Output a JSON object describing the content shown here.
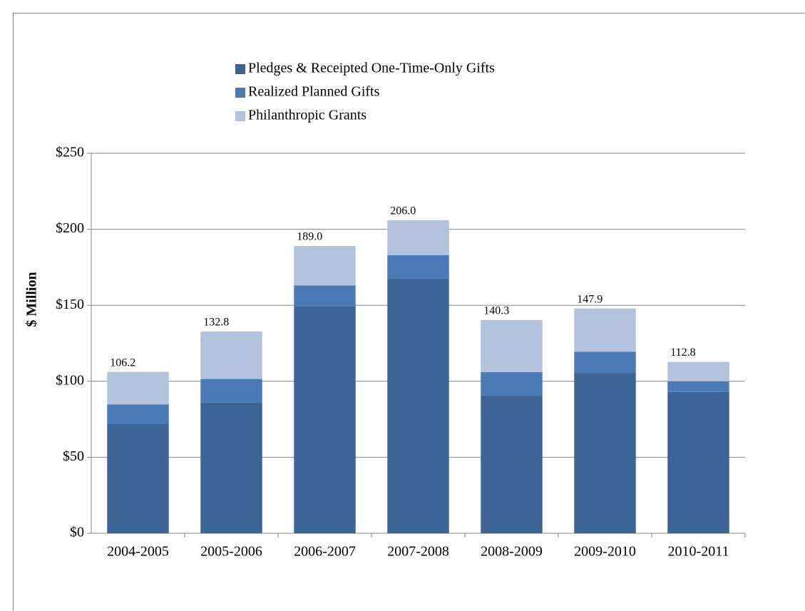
{
  "chart_data": {
    "type": "stacked_bar",
    "y_label": "$ Million",
    "categories": [
      "2004-2005",
      "2005-2006",
      "2006-2007",
      "2007-2008",
      "2008-2009",
      "2009-2010",
      "2010-2011"
    ],
    "series": [
      {
        "name": "Pledges & Receipted One-Time-Only Gifts",
        "color": "#3d6496",
        "values": [
          72,
          86,
          149.5,
          167.5,
          90.5,
          105.5,
          93
        ]
      },
      {
        "name": "Realized Planned Gifts",
        "color": "#4a7ab5",
        "values": [
          12.8,
          15.5,
          13.5,
          15.5,
          15.5,
          14,
          7
        ]
      },
      {
        "name": "Philanthropic Grants",
        "color": "#b4c3dd",
        "values": [
          21.4,
          31.3,
          26,
          23,
          34.3,
          28.4,
          12.8
        ]
      }
    ],
    "total_labels": [
      "106.2",
      "132.8",
      "189.0",
      "206.0",
      "140.3",
      "147.9",
      "112.8"
    ],
    "ylim": [
      0,
      250
    ],
    "yticks": [
      {
        "value": 0,
        "label": "$0"
      },
      {
        "value": 50,
        "label": "$50"
      },
      {
        "value": 100,
        "label": "$100"
      },
      {
        "value": 150,
        "label": "$150"
      },
      {
        "value": 200,
        "label": "$200"
      },
      {
        "value": 250,
        "label": "$250"
      }
    ],
    "grid": true
  }
}
